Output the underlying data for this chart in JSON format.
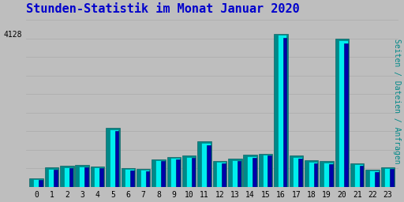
{
  "title": "Stunden-Statistik im Monat Januar 2020",
  "title_color": "#0000cc",
  "background_color": "#bebebe",
  "plot_bg_color": "#bebebe",
  "bar_color_cyan": "#00eeee",
  "bar_color_teal": "#008888",
  "bar_color_blue": "#0000aa",
  "ylabel_right": "Seiten / Dateien / Anfragen",
  "hours": [
    0,
    1,
    2,
    3,
    4,
    5,
    6,
    7,
    8,
    9,
    10,
    11,
    12,
    13,
    14,
    15,
    16,
    17,
    18,
    19,
    20,
    21,
    22,
    23
  ],
  "seiten": [
    230,
    520,
    570,
    590,
    560,
    1600,
    510,
    490,
    750,
    810,
    840,
    1230,
    700,
    760,
    860,
    900,
    4128,
    850,
    720,
    700,
    4000,
    640,
    470,
    540
  ],
  "dateien": [
    210,
    490,
    540,
    560,
    530,
    1560,
    480,
    460,
    720,
    780,
    810,
    1180,
    670,
    730,
    820,
    870,
    4090,
    810,
    680,
    660,
    3940,
    610,
    440,
    510
  ],
  "anfragen": [
    190,
    460,
    510,
    530,
    500,
    1510,
    450,
    430,
    690,
    750,
    780,
    1130,
    640,
    700,
    790,
    840,
    4020,
    770,
    640,
    620,
    3870,
    580,
    410,
    480
  ],
  "ylim": [
    0,
    4600
  ],
  "ymax_label": "4128",
  "grid_color": "#aaaaaa",
  "font_family": "monospace",
  "font_size_title": 11,
  "font_size_ticks": 7,
  "font_size_ylabel": 7
}
